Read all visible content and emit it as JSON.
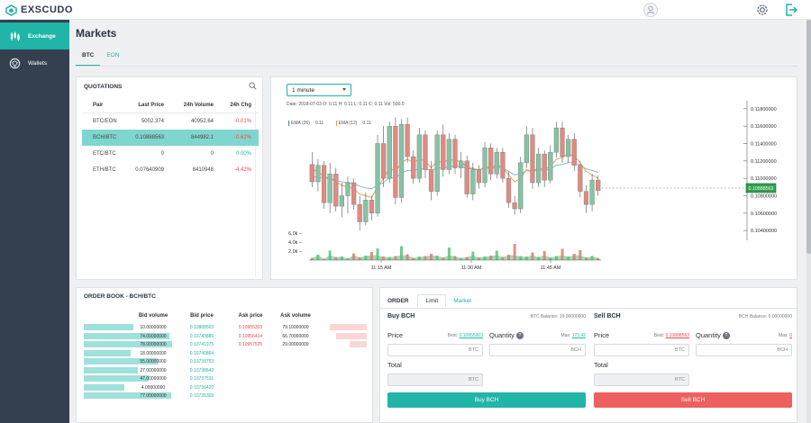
{
  "app": {
    "logo_text": "EXSCUDO"
  },
  "sidebar": {
    "items": [
      {
        "label": "Exchange",
        "active": true
      },
      {
        "label": "Wallets",
        "active": false
      }
    ]
  },
  "page": {
    "title": "Markets",
    "tabs": [
      {
        "label": "BTC",
        "active": true
      },
      {
        "label": "EON",
        "active": false
      }
    ]
  },
  "quotations": {
    "title": "QUOTATIONS",
    "columns": [
      "Pair",
      "Last Price",
      "24h Volume",
      "24h Chg"
    ],
    "rows": [
      {
        "pair": "BTC/EON",
        "last": "5002.374",
        "volume": "40952.64",
        "chg": "-0.01%",
        "dir": "neg"
      },
      {
        "pair": "BCH/BTC",
        "last": "0.10888563",
        "volume": "844982.1",
        "chg": "-0.62%",
        "dir": "neg"
      },
      {
        "pair": "ETC/BTC",
        "last": "0",
        "volume": "0",
        "chg": "0.00%",
        "dir": "pos"
      },
      {
        "pair": "ETH/BTC",
        "last": "0.07640909",
        "volume": "8410948",
        "chg": "-4.42%",
        "dir": "neg"
      }
    ]
  },
  "chart": {
    "timeframe": "1 minute",
    "ohlc_line": "Date: 2018-07-03  O: 0.11  H: 0.11  L: 0.11  C: 0.11  Vol: 500.0",
    "ema": [
      {
        "label": "EMA (26)",
        "value": "0.11",
        "color": "#3a7fc2"
      },
      {
        "label": "EMA (12)",
        "value": "0.11",
        "color": "#e8a25a"
      }
    ],
    "price_ticks": [
      "0.11800000",
      "0.11600000",
      "0.11400000",
      "0.11200000",
      "0.11000000",
      "0.10800000",
      "0.10600000",
      "0.10400000"
    ],
    "volume_ticks": [
      "6.0k",
      "4.0k",
      "2.0k"
    ],
    "time_ticks": [
      "11:15 AM",
      "11:30 AM",
      "11:45 AM"
    ],
    "current_price": "0.10888563",
    "colors": {
      "up": "#86c3a4",
      "down": "#e28a82",
      "ema_fast": "#e8a25a",
      "ema_slow": "#8db8d8",
      "volume_area": "#7fcf98"
    }
  },
  "chart_data": {
    "type": "candlestick",
    "x_ticks": [
      "11:15 AM",
      "11:30 AM",
      "11:45 AM"
    ],
    "price_range": [
      0.1035,
      0.1185
    ],
    "candles": [
      [
        0.1116,
        0.1096,
        0.113,
        0.109
      ],
      [
        0.1096,
        0.1115,
        0.1122,
        0.1085
      ],
      [
        0.1115,
        0.1072,
        0.112,
        0.1065
      ],
      [
        0.1072,
        0.1105,
        0.1118,
        0.106
      ],
      [
        0.1105,
        0.1068,
        0.1112,
        0.1062
      ],
      [
        0.1068,
        0.108,
        0.1095,
        0.1055
      ],
      [
        0.108,
        0.1095,
        0.1102,
        0.106
      ],
      [
        0.1095,
        0.107,
        0.11,
        0.1064
      ],
      [
        0.107,
        0.105,
        0.108,
        0.104
      ],
      [
        0.105,
        0.1075,
        0.1084,
        0.1046
      ],
      [
        0.1075,
        0.106,
        0.108,
        0.1052
      ],
      [
        0.106,
        0.114,
        0.115,
        0.1056
      ],
      [
        0.114,
        0.11,
        0.116,
        0.109
      ],
      [
        0.11,
        0.116,
        0.1165,
        0.1095
      ],
      [
        0.116,
        0.1078,
        0.117,
        0.107
      ],
      [
        0.1078,
        0.1162,
        0.1168,
        0.1072
      ],
      [
        0.1162,
        0.1125,
        0.117,
        0.1118
      ],
      [
        0.1125,
        0.11,
        0.1132,
        0.1094
      ],
      [
        0.11,
        0.115,
        0.1158,
        0.1095
      ],
      [
        0.115,
        0.111,
        0.1155,
        0.11
      ],
      [
        0.111,
        0.1085,
        0.112,
        0.1075
      ],
      [
        0.1085,
        0.115,
        0.1155,
        0.108
      ],
      [
        0.115,
        0.111,
        0.1162,
        0.1102
      ],
      [
        0.111,
        0.1145,
        0.1152,
        0.1105
      ],
      [
        0.1145,
        0.1112,
        0.115,
        0.1105
      ],
      [
        0.1112,
        0.112,
        0.113,
        0.11
      ],
      [
        0.112,
        0.1082,
        0.1126,
        0.1078
      ],
      [
        0.1082,
        0.111,
        0.1118,
        0.1075
      ],
      [
        0.111,
        0.1095,
        0.1115,
        0.1088
      ],
      [
        0.1095,
        0.1135,
        0.1142,
        0.109
      ],
      [
        0.1135,
        0.1105,
        0.114,
        0.1098
      ],
      [
        0.1105,
        0.113,
        0.1135,
        0.11
      ],
      [
        0.113,
        0.11,
        0.1135,
        0.1095
      ],
      [
        0.11,
        0.1072,
        0.1108,
        0.1066
      ],
      [
        0.1072,
        0.1065,
        0.108,
        0.1058
      ],
      [
        0.1065,
        0.1118,
        0.1125,
        0.106
      ],
      [
        0.1118,
        0.115,
        0.116,
        0.1112
      ],
      [
        0.115,
        0.1095,
        0.1158,
        0.1088
      ],
      [
        0.1095,
        0.1128,
        0.1135,
        0.109
      ],
      [
        0.1128,
        0.1098,
        0.1132,
        0.109
      ],
      [
        0.1098,
        0.113,
        0.1138,
        0.1094
      ],
      [
        0.113,
        0.1158,
        0.1165,
        0.1124
      ],
      [
        0.1158,
        0.1125,
        0.1165,
        0.1118
      ],
      [
        0.1125,
        0.1145,
        0.115,
        0.1118
      ],
      [
        0.1145,
        0.1115,
        0.1152,
        0.1108
      ],
      [
        0.1115,
        0.1085,
        0.112,
        0.1078
      ],
      [
        0.1085,
        0.107,
        0.1092,
        0.106
      ],
      [
        0.107,
        0.1098,
        0.1105,
        0.1062
      ],
      [
        0.1098,
        0.1086,
        0.1103,
        0.108
      ]
    ],
    "volume_range": [
      0,
      8000
    ],
    "volumes": [
      500,
      1200,
      300,
      2100,
      700,
      800,
      400,
      1500,
      600,
      1000,
      1800,
      2600,
      800,
      700,
      900,
      3100,
      1300,
      500,
      800,
      900,
      1400,
      1000,
      600,
      2800,
      900,
      500,
      700,
      1900,
      600,
      800,
      1000,
      2100,
      700,
      1200,
      3600,
      900,
      800,
      1700,
      700,
      2000,
      600,
      900,
      2500,
      800,
      1400,
      2200,
      600,
      900,
      500
    ],
    "ema_fast": [
      0.111,
      0.1108,
      0.1102,
      0.11,
      0.1096,
      0.1092,
      0.109,
      0.1088,
      0.1082,
      0.108,
      0.1078,
      0.109,
      0.11,
      0.1112,
      0.1108,
      0.1118,
      0.1122,
      0.1118,
      0.1122,
      0.112,
      0.1112,
      0.112,
      0.1118,
      0.1122,
      0.112,
      0.112,
      0.1112,
      0.1112,
      0.1108,
      0.1114,
      0.1112,
      0.1116,
      0.1112,
      0.1104,
      0.1096,
      0.11,
      0.111,
      0.1108,
      0.1112,
      0.111,
      0.1114,
      0.1122,
      0.1124,
      0.1128,
      0.1126,
      0.1118,
      0.1108,
      0.1104,
      0.11
    ],
    "ema_slow": [
      0.1102,
      0.1102,
      0.11,
      0.11,
      0.1098,
      0.1096,
      0.1095,
      0.1094,
      0.1091,
      0.1089,
      0.1088,
      0.1092,
      0.1095,
      0.1101,
      0.11,
      0.1106,
      0.1109,
      0.1109,
      0.1111,
      0.1111,
      0.1109,
      0.1112,
      0.1112,
      0.1114,
      0.1114,
      0.1114,
      0.1111,
      0.1111,
      0.111,
      0.1112,
      0.1111,
      0.1113,
      0.1112,
      0.1108,
      0.1104,
      0.1105,
      0.1109,
      0.1108,
      0.111,
      0.1109,
      0.1111,
      0.1115,
      0.1116,
      0.1118,
      0.1118,
      0.1115,
      0.1111,
      0.1109,
      0.1107
    ]
  },
  "orderbook": {
    "title": "ORDER BOOK - BCH/BTC",
    "columns": [
      "Bid volume",
      "Bid price",
      "Ask price",
      "Ask volume"
    ],
    "bids": [
      {
        "vol": "10.00000000",
        "price": "0.10888563",
        "fill": 0.55
      },
      {
        "vol": "74.00000000",
        "price": "0.10743886",
        "fill": 0.95
      },
      {
        "vol": "78.00000000",
        "price": "0.10741975",
        "fill": 0.98
      },
      {
        "vol": "18.00000000",
        "price": "0.10740864",
        "fill": 0.52
      },
      {
        "vol": "55.00000000",
        "price": "0.10739753",
        "fill": 0.82
      },
      {
        "vol": "27.00000000",
        "price": "0.10738642",
        "fill": 0.6
      },
      {
        "vol": "47.00000000",
        "price": "0.10737531",
        "fill": 0.72
      },
      {
        "vol": "4.00000000",
        "price": "0.10736420",
        "fill": 0.45
      },
      {
        "vol": "77.00000000",
        "price": "0.10735309",
        "fill": 0.97
      }
    ],
    "asks": [
      {
        "price": "0.10955303",
        "vol": "79.10000000",
        "fill": 0.75
      },
      {
        "price": "0.10956414",
        "vol": "66.70000000",
        "fill": 0.62
      },
      {
        "price": "0.10957525",
        "vol": "29.00000000",
        "fill": 0.35
      }
    ]
  },
  "order": {
    "title": "ORDER",
    "tabs": [
      "Limit",
      "Market"
    ],
    "buy": {
      "title": "Buy BCH",
      "balance": "BTC Balance: 19.00000000",
      "price_label": "Price",
      "best_prefix": "Best: ",
      "best_value": "0.10955303",
      "qty_label": "Quantity",
      "max_prefix": "Max: ",
      "max_value": "173.42",
      "price_unit": "BTC",
      "qty_unit": "BCH",
      "total_label": "Total",
      "total_unit": "BTC",
      "button": "Buy BCH"
    },
    "sell": {
      "title": "Sell BCH",
      "balance": "BCH Balance: 0.00000000",
      "price_label": "Price",
      "best_prefix": "Best: ",
      "best_value": "0.10888563",
      "qty_label": "Quantity",
      "max_prefix": "Max: ",
      "max_value": "0",
      "price_unit": "BTC",
      "qty_unit": "BCH",
      "total_label": "Total",
      "total_unit": "BTC",
      "button": "Sell BCH"
    },
    "qmark": "?"
  },
  "colors": {
    "accent": "#21b4a8",
    "sidebar": "#34404e",
    "buy": "#21b4a8",
    "sell": "#ee6060",
    "negative": "#e64a4a"
  }
}
